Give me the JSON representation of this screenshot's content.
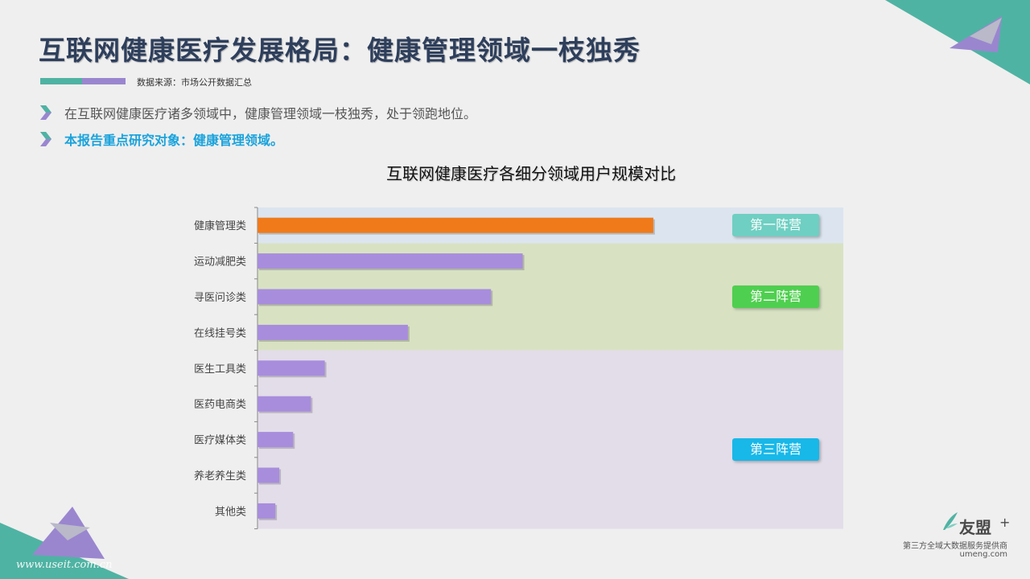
{
  "title": "互联网健康医疗发展格局：健康管理领域一枝独秀",
  "source": "数据来源：市场公开数据汇总",
  "bullets": [
    "在互联网健康医疗诸多领域中，健康管理领域一枝独秀，处于领跑地位。",
    "本报告重点研究对象：健康管理领域。"
  ],
  "colors": {
    "title": "#2e3f5c",
    "highlight_bar": "#f07a1a",
    "bar": "#a88ddd",
    "camp1_bg": "#dce5ef",
    "camp2_bg": "#d8e2c3",
    "camp3_bg": "#e3dde9",
    "camp1_label": "#6fcfc2",
    "camp2_label": "#4fcf4f",
    "camp3_label": "#18b8e8",
    "accent_teal": "#4fb3a3",
    "accent_purple": "#9a86cf"
  },
  "chart_data": {
    "type": "bar",
    "orientation": "horizontal",
    "title": "互联网健康医疗各细分领域用户规模对比",
    "categories": [
      "健康管理类",
      "运动减肥类",
      "寻医问诊类",
      "在线挂号类",
      "医生工具类",
      "医药电商类",
      "医疗媒体类",
      "养老养生类",
      "其他类"
    ],
    "values": [
      100,
      67,
      59,
      38,
      17,
      13.5,
      9,
      5.5,
      4.5
    ],
    "xlim": [
      0,
      148
    ],
    "value_axis_labels": false,
    "grid": false,
    "highlight_index": 0,
    "groups": [
      {
        "label": "第一阵营",
        "start": 0,
        "end": 0
      },
      {
        "label": "第二阵营",
        "start": 1,
        "end": 3
      },
      {
        "label": "第三阵营",
        "start": 4,
        "end": 8
      }
    ]
  },
  "logo": {
    "name": "友盟",
    "plus": "+",
    "tagline": "第三方全域大数据服务提供商",
    "domain": "umeng.com"
  },
  "watermark": "www.useit.com.cn"
}
